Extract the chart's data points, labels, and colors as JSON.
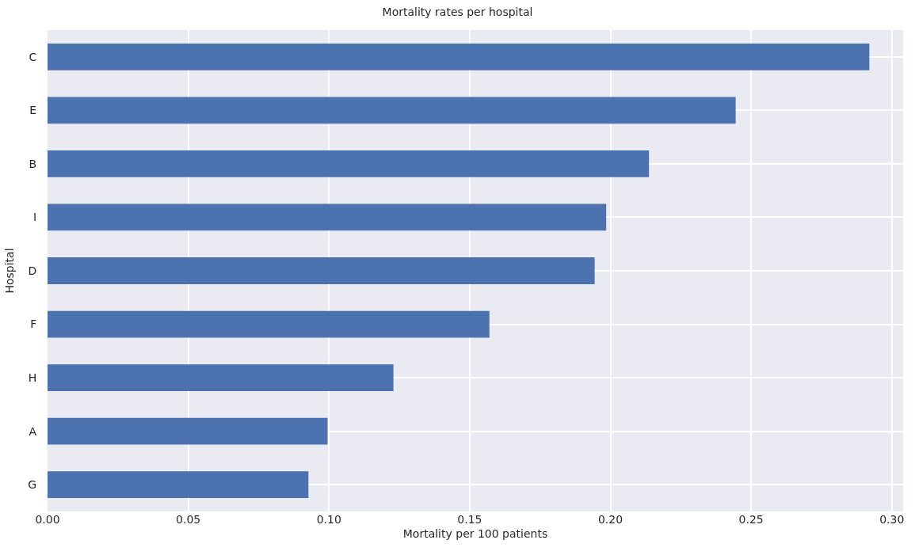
{
  "chart_data": {
    "type": "bar",
    "orientation": "horizontal",
    "title": "Mortality rates per hospital",
    "xlabel": "Mortality per 100 patients",
    "ylabel": "Hospital",
    "categories": [
      "C",
      "E",
      "B",
      "I",
      "D",
      "F",
      "H",
      "A",
      "G"
    ],
    "values": [
      0.292,
      0.2445,
      0.2137,
      0.1985,
      0.1944,
      0.157,
      0.1229,
      0.0995,
      0.0927
    ],
    "color": "#4c72b0",
    "xlim": [
      0,
      0.304
    ],
    "xticks": [
      {
        "value": 0,
        "label": "0.00"
      },
      {
        "value": 0.05,
        "label": "0.05"
      },
      {
        "value": 0.1,
        "label": "0.10"
      },
      {
        "value": 0.15,
        "label": "0.15"
      },
      {
        "value": 0.2,
        "label": "0.20"
      },
      {
        "value": 0.25,
        "label": "0.25"
      },
      {
        "value": 0.3,
        "label": "0.30"
      }
    ],
    "grid": true,
    "legend": false
  }
}
